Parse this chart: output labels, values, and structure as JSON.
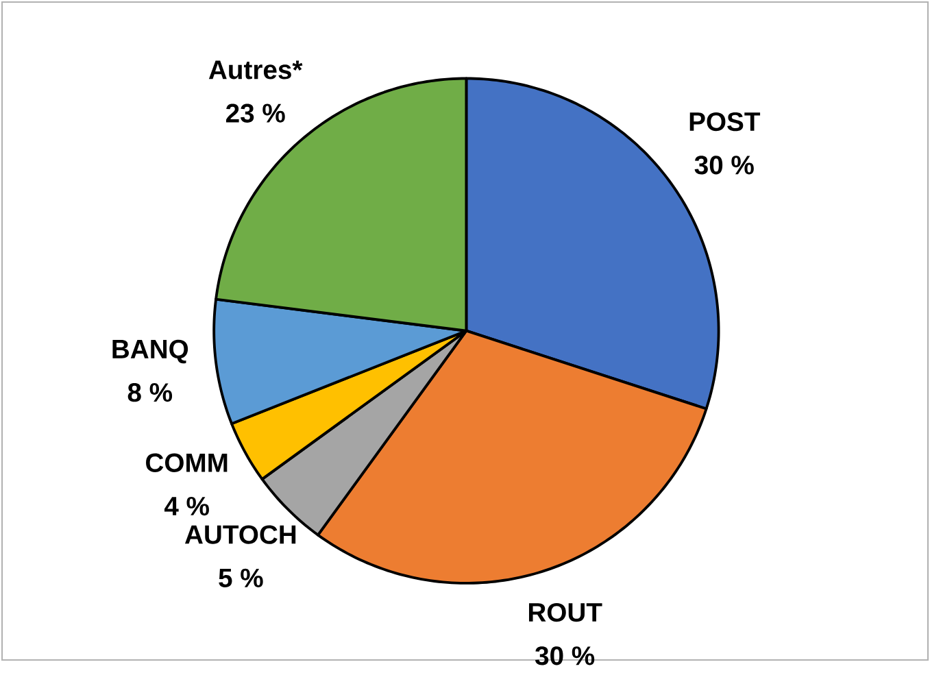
{
  "chart_data": {
    "type": "pie",
    "categories": [
      "POST",
      "ROUT",
      "AUTOCH",
      "COMM",
      "BANQ",
      "Autres*"
    ],
    "values": [
      30,
      30,
      5,
      4,
      8,
      23
    ],
    "colors": [
      "#4472c4",
      "#ed7d31",
      "#a5a5a5",
      "#ffc000",
      "#5b9bd5",
      "#70ad47"
    ],
    "value_labels": [
      "30 %",
      "30 %",
      "5 %",
      "4 %",
      "8 %",
      "23 %"
    ]
  }
}
